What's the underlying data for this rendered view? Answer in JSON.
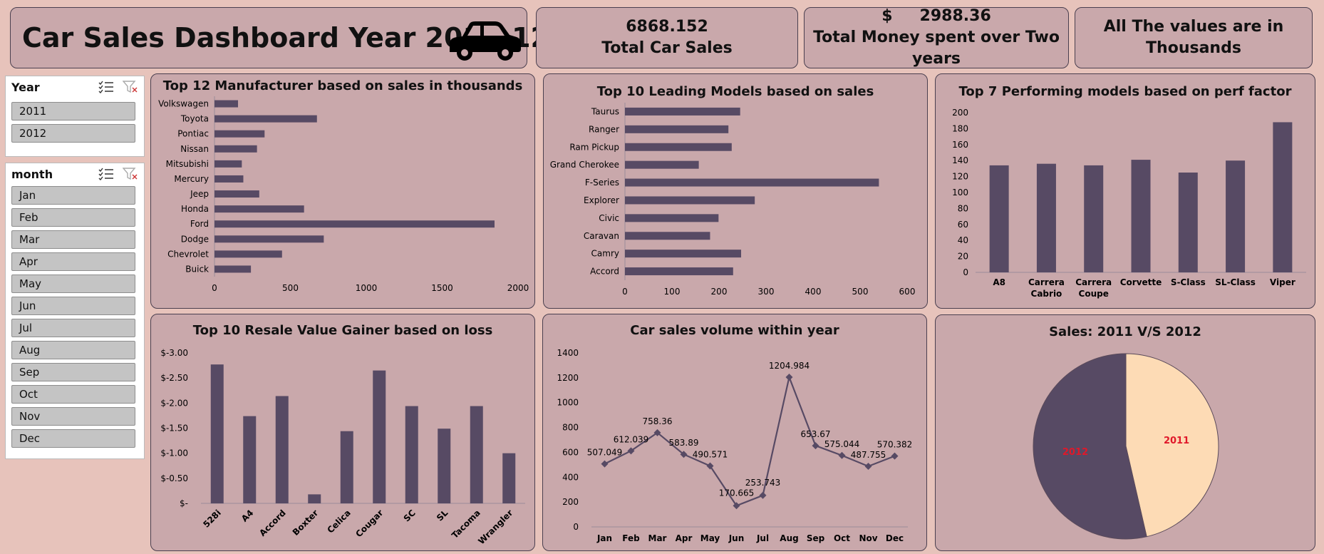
{
  "header": {
    "title": "Car Sales Dashboard Year 2011-12"
  },
  "kpis": {
    "total_sales_value": "6868.152",
    "total_sales_label": "Total Car Sales",
    "money_symbol": "$",
    "money_value": "2988.36",
    "money_label": "Total Money spent over Two years",
    "note_line1": "All The values are in",
    "note_line2": "Thousands"
  },
  "slicers": {
    "year": {
      "title": "Year",
      "items": [
        "2011",
        "2012"
      ]
    },
    "month": {
      "title": "month",
      "items": [
        "Jan",
        "Feb",
        "Mar",
        "Apr",
        "May",
        "Jun",
        "Jul",
        "Aug",
        "Sep",
        "Oct",
        "Nov",
        "Dec"
      ]
    }
  },
  "colors": {
    "bar": "#574a64",
    "pie_2011": "#fddbb5",
    "pie_2012": "#574a64",
    "pie_label": "#e0182a"
  },
  "chart_data": [
    {
      "id": "manufacturers",
      "type": "bar",
      "orientation": "horizontal",
      "title": "Top 12 Manufacturer based on sales in thousands",
      "categories": [
        "Volkswagen",
        "Toyota",
        "Pontiac",
        "Nissan",
        "Mitsubishi",
        "Mercury",
        "Jeep",
        "Honda",
        "Ford",
        "Dodge",
        "Chevrolet",
        "Buick"
      ],
      "values": [
        155,
        675,
        330,
        280,
        180,
        190,
        295,
        590,
        1845,
        720,
        445,
        240
      ],
      "xlim": [
        0,
        2000
      ],
      "ticks": [
        "0",
        "500",
        "1000",
        "1500",
        "2000"
      ]
    },
    {
      "id": "models",
      "type": "bar",
      "orientation": "horizontal",
      "title": "Top  10 Leading Models based on sales",
      "categories": [
        "Taurus",
        "Ranger",
        "Ram Pickup",
        "Grand Cherokee",
        "F-Series",
        "Explorer",
        "Civic",
        "Caravan",
        "Camry",
        "Accord"
      ],
      "values": [
        245,
        220,
        227,
        157,
        540,
        276,
        199,
        181,
        247,
        230
      ],
      "xlim": [
        0,
        600
      ],
      "ticks": [
        "0",
        "100",
        "200",
        "300",
        "400",
        "500",
        "600"
      ]
    },
    {
      "id": "performance",
      "type": "bar",
      "title": "Top 7 Performing models based on perf factor",
      "categories": [
        "A8",
        "Carrera Cabrio",
        "Carrera Coupe",
        "Corvette",
        "S-Class",
        "SL-Class",
        "Viper"
      ],
      "values": [
        134,
        136,
        134,
        141,
        125,
        140,
        188
      ],
      "ylim": [
        0,
        200
      ],
      "ticks": [
        "0",
        "20",
        "40",
        "60",
        "80",
        "100",
        "120",
        "140",
        "160",
        "180",
        "200"
      ]
    },
    {
      "id": "resale",
      "type": "bar",
      "title": "Top 10 Resale Value Gainer based on loss",
      "categories": [
        "528i",
        "A4",
        "Accord",
        "Boxter",
        "Celica",
        "Cougar",
        "SC",
        "SL",
        "Tacoma",
        "Wrangler"
      ],
      "values": [
        -2.77,
        -1.74,
        -2.14,
        -0.18,
        -1.44,
        -2.65,
        -1.94,
        -1.49,
        -1.94,
        -1.0
      ],
      "ylim": [
        0,
        -3.0
      ],
      "ticks": [
        "$-",
        "$-0.50",
        "$-1.00",
        "$-1.50",
        "$-2.00",
        "$-2.50",
        "$-3.00"
      ]
    },
    {
      "id": "volume",
      "type": "line",
      "title": "Car sales volume within year",
      "x": [
        "Jan",
        "Feb",
        "Mar",
        "Apr",
        "May",
        "Jun",
        "Jul",
        "Aug",
        "Sep",
        "Oct",
        "Nov",
        "Dec"
      ],
      "values": [
        507.049,
        612.039,
        758.36,
        583.89,
        490.571,
        170.665,
        253.743,
        1204.984,
        653.67,
        575.044,
        487.755,
        570.382
      ],
      "labels": [
        "507.049",
        "612.039",
        "758.36",
        "583.89",
        "490.571",
        "170.665",
        "253.743",
        "1204.984",
        "653.67",
        "575.044",
        "487.755",
        "570.382"
      ],
      "ylim": [
        0,
        1400
      ],
      "ticks": [
        "0",
        "200",
        "400",
        "600",
        "800",
        "1000",
        "1200",
        "1400"
      ]
    },
    {
      "id": "year_split",
      "type": "pie",
      "title": "Sales: 2011 V/S 2012",
      "slices": [
        {
          "label": "2011",
          "value": 46.4
        },
        {
          "label": "2012",
          "value": 53.6
        }
      ]
    }
  ]
}
